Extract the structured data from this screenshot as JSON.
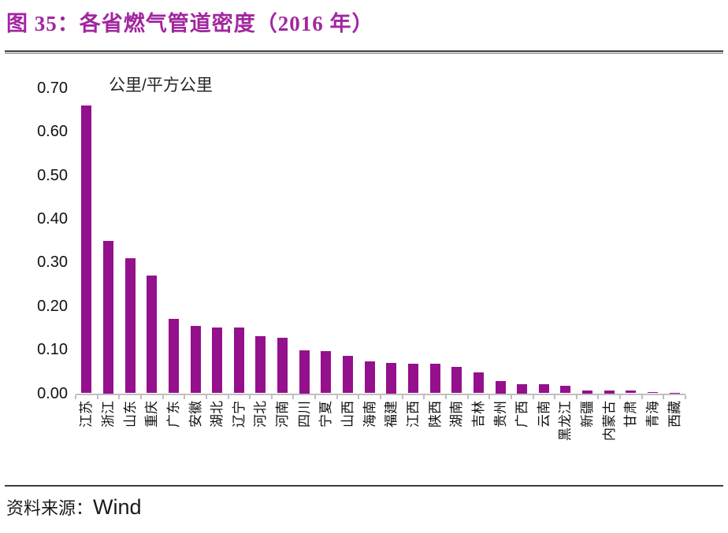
{
  "figure": {
    "title": "图 35：各省燃气管道密度（2016 年）",
    "source_label": "资料来源：",
    "source_value": "Wind"
  },
  "colors": {
    "title": "#A226A0",
    "bar": "#94108C",
    "axis": "#BFBFBF",
    "divider": "#3D3D3D",
    "text": "#111111"
  },
  "chart_data": {
    "type": "bar",
    "title": "各省燃气管道密度（2016 年）",
    "unit_label": "公里/平方公里",
    "ylabel": "公里/平方公里",
    "xlabel": "",
    "ylim": [
      0,
      0.7
    ],
    "ytick_labels": [
      "0.00",
      "0.10",
      "0.20",
      "0.30",
      "0.40",
      "0.50",
      "0.60",
      "0.70"
    ],
    "grid": false,
    "legend": "none",
    "bar_color": "#94108C",
    "categories": [
      "江苏",
      "浙江",
      "山东",
      "重庆",
      "广东",
      "安徽",
      "湖北",
      "辽宁",
      "河北",
      "河南",
      "四川",
      "宁夏",
      "山西",
      "海南",
      "福建",
      "江西",
      "陕西",
      "湖南",
      "吉林",
      "贵州",
      "广西",
      "云南",
      "黑龙江",
      "新疆",
      "内蒙古",
      "甘肃",
      "青海",
      "西藏"
    ],
    "values": [
      0.66,
      0.35,
      0.31,
      0.27,
      0.17,
      0.155,
      0.151,
      0.15,
      0.131,
      0.128,
      0.098,
      0.096,
      0.086,
      0.073,
      0.07,
      0.068,
      0.067,
      0.06,
      0.048,
      0.028,
      0.021,
      0.02,
      0.018,
      0.007,
      0.007,
      0.006,
      0.003,
      0.001
    ]
  }
}
